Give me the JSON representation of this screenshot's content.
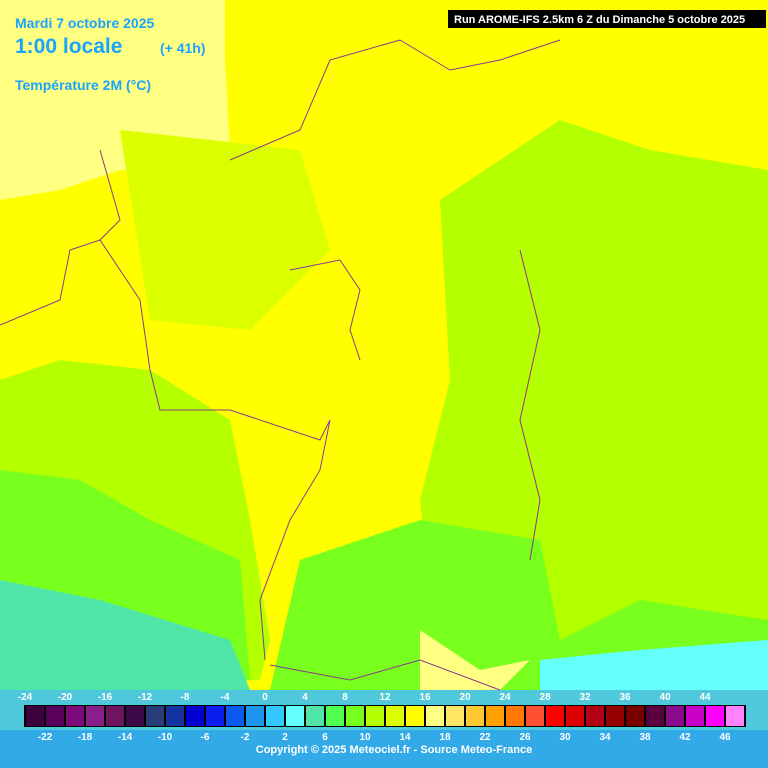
{
  "header": {
    "date": "Mardi 7 octobre 2025",
    "time": "1:00 locale",
    "lead": "(+ 41h)",
    "variable": "Température 2M (°C)",
    "run": "Run AROME-IFS 2.5km 6 Z du Dimanche 5 octobre 2025"
  },
  "legend": {
    "entries": [
      {
        "value": -24,
        "color": "#3c003c"
      },
      {
        "value": -22,
        "color": "#5a005a"
      },
      {
        "value": -20,
        "color": "#7d0a7d"
      },
      {
        "value": -18,
        "color": "#8c1e8c"
      },
      {
        "value": -16,
        "color": "#6e1460"
      },
      {
        "value": -14,
        "color": "#3c0a46"
      },
      {
        "value": -12,
        "color": "#283c78"
      },
      {
        "value": -10,
        "color": "#1432a0"
      },
      {
        "value": -8,
        "color": "#0000d2"
      },
      {
        "value": -6,
        "color": "#0a1ef0"
      },
      {
        "value": -4,
        "color": "#0a5af0"
      },
      {
        "value": -2,
        "color": "#1e96f0"
      },
      {
        "value": 0,
        "color": "#32c8ff"
      },
      {
        "value": 2,
        "color": "#64ffff"
      },
      {
        "value": 4,
        "color": "#50e6aa"
      },
      {
        "value": 6,
        "color": "#50ff50"
      },
      {
        "value": 8,
        "color": "#78ff1e"
      },
      {
        "value": 10,
        "color": "#b4ff00"
      },
      {
        "value": 12,
        "color": "#dcff00"
      },
      {
        "value": 14,
        "color": "#ffff00"
      },
      {
        "value": 16,
        "color": "#ffff82"
      },
      {
        "value": 18,
        "color": "#ffe664"
      },
      {
        "value": 20,
        "color": "#ffc832"
      },
      {
        "value": 22,
        "color": "#ffa000"
      },
      {
        "value": 24,
        "color": "#ff7800"
      },
      {
        "value": 26,
        "color": "#ff5032"
      },
      {
        "value": 28,
        "color": "#ff0000"
      },
      {
        "value": 30,
        "color": "#dc0000"
      },
      {
        "value": 32,
        "color": "#b40014"
      },
      {
        "value": 34,
        "color": "#960000"
      },
      {
        "value": 36,
        "color": "#780000"
      },
      {
        "value": 38,
        "color": "#5a003c"
      },
      {
        "value": 40,
        "color": "#8c0a8c"
      },
      {
        "value": 42,
        "color": "#c800c8"
      },
      {
        "value": 44,
        "color": "#ff00ff"
      },
      {
        "value": 46,
        "color": "#ff82ff"
      }
    ]
  },
  "footer": "Copyright © 2025 Meteociel.fr - Source Meteo-France"
}
